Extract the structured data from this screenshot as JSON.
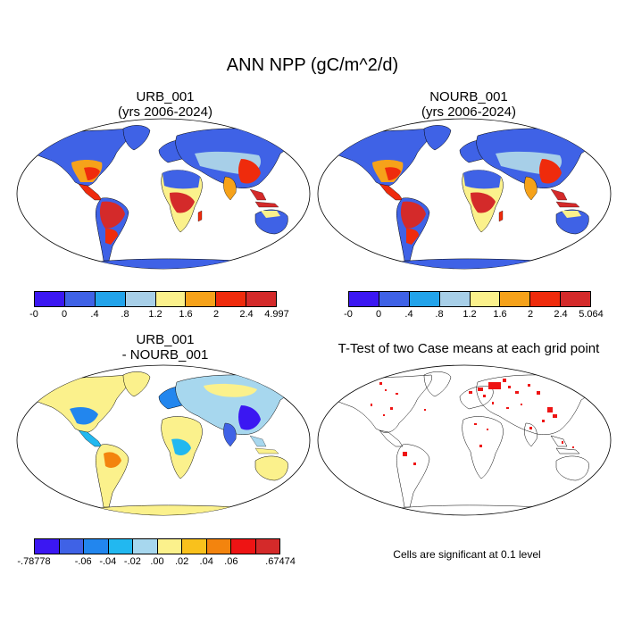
{
  "title": "ANN NPP (gC/m^2/d)",
  "panels": {
    "p1": {
      "line1": "URB_001",
      "line2": "(yrs 2006-2024)"
    },
    "p2": {
      "line1": "NOURB_001",
      "line2": "(yrs 2006-2024)"
    },
    "p3": {
      "line1": "URB_001",
      "line2": "- NOURB_001"
    },
    "p4": {
      "line1": "T-Test of two Case means at each grid point"
    }
  },
  "colorbars": {
    "abs": {
      "colors": [
        "#3b17f2",
        "#3f62e6",
        "#22a3ea",
        "#a7cfe8",
        "#fbf18c",
        "#f6a21a",
        "#ef2b0c",
        "#d42a2a"
      ],
      "labels_p1": [
        "-0",
        "0",
        ".4",
        ".8",
        "1.2",
        "1.6",
        "2",
        "2.4",
        "4.997"
      ],
      "labels_p2": [
        "-0",
        "0",
        ".4",
        ".8",
        "1.2",
        "1.6",
        "2",
        "2.4",
        "5.064"
      ]
    },
    "diff": {
      "colors": [
        "#3b17f2",
        "#3f62e6",
        "#2286ee",
        "#22b8f0",
        "#a7d7ee",
        "#fbf18c",
        "#f9c11c",
        "#f3840e",
        "#ee1414",
        "#d42a2a"
      ],
      "labels": [
        "-.78778",
        "-.06",
        "-.04",
        "-.02",
        ".00",
        ".02",
        ".04",
        ".06",
        ".67474"
      ]
    }
  },
  "note": "Cells are significant at 0.1 level"
}
